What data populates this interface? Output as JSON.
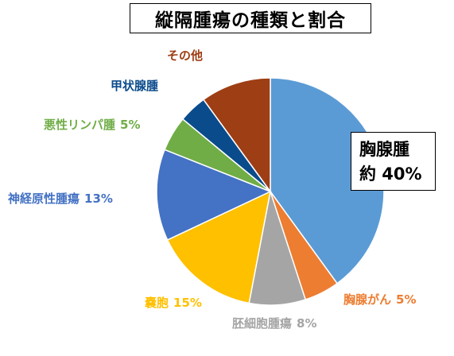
{
  "chart_data": {
    "type": "pie",
    "title": "縦隔腫瘍の種類と割合",
    "start": "12 o'clock",
    "direction": "clockwise",
    "slices": [
      {
        "label": "胸腺腫",
        "text": "胸腺腫",
        "percent_text": "約 40%",
        "value": 40,
        "color": "#5b9bd5"
      },
      {
        "label": "胸腺がん",
        "text": "胸腺がん",
        "percent_text": "5%",
        "value": 5,
        "color": "#ed7d31"
      },
      {
        "label": "胚細胞腫瘍",
        "text": "胚細胞腫瘍",
        "percent_text": "8%",
        "value": 8,
        "color": "#a5a5a5"
      },
      {
        "label": "嚢胞",
        "text": "嚢胞",
        "percent_text": "15%",
        "value": 15,
        "color": "#ffc000"
      },
      {
        "label": "神経原性腫瘍",
        "text": "神経原性腫瘍",
        "percent_text": "13%",
        "value": 13,
        "color": "#4472c4"
      },
      {
        "label": "悪性リンパ腫",
        "text": "悪性リンパ腫",
        "percent_text": "5%",
        "value": 5,
        "color": "#70ad47"
      },
      {
        "label": "甲状腺腫",
        "text": "甲状腺腫",
        "percent_text": "",
        "value": 4,
        "color": "#0a4b8c"
      },
      {
        "label": "その他",
        "text": "その他",
        "percent_text": "",
        "value": 10,
        "color": "#9e3e14"
      }
    ]
  }
}
